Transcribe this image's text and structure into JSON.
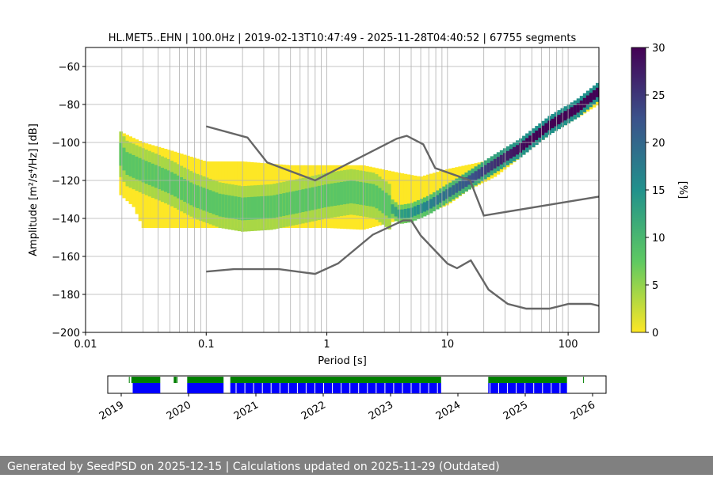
{
  "chart_data": [
    {
      "type": "heatmap",
      "title": "HL.MET5..EHN | 100.0Hz | 2019-02-13T10:47:49 - 2025-11-28T04:40:52 | 67755 segments",
      "xlabel": "Period [s]",
      "ylabel": "Amplitude [m²/s⁴/Hz] [dB]",
      "xscale": "log",
      "xlim": [
        0.01,
        180
      ],
      "ylim": [
        -200,
        -50
      ],
      "xticks": [
        "0.01",
        "0.1",
        "1",
        "10",
        "100"
      ],
      "yticks": [
        "−60",
        "−80",
        "−100",
        "−120",
        "−140",
        "−160",
        "−180",
        "−200"
      ],
      "grid": true,
      "colorbar": {
        "label": "[%]",
        "range": [
          0,
          30
        ],
        "ticks": [
          "0",
          "5",
          "10",
          "15",
          "20",
          "25",
          "30"
        ],
        "colormap": "viridis_r"
      },
      "psd_mode": [
        [
          0.019,
          -105
        ],
        [
          0.022,
          -111
        ],
        [
          0.03,
          -115
        ],
        [
          0.05,
          -121
        ],
        [
          0.08,
          -128
        ],
        [
          0.13,
          -133
        ],
        [
          0.2,
          -135
        ],
        [
          0.35,
          -134
        ],
        [
          0.6,
          -131
        ],
        [
          1.0,
          -128
        ],
        [
          1.6,
          -126
        ],
        [
          2.5,
          -128
        ],
        [
          3.5,
          -135
        ],
        [
          4.0,
          -138
        ],
        [
          5.0,
          -137
        ],
        [
          7.0,
          -133
        ],
        [
          10.0,
          -127
        ],
        [
          15.0,
          -120
        ],
        [
          25.0,
          -111
        ],
        [
          40.0,
          -103
        ],
        [
          70.0,
          -91
        ],
        [
          120.0,
          -82
        ],
        [
          180.0,
          -73
        ]
      ],
      "psd_envelope": {
        "upper": [
          [
            0.019,
            -94
          ],
          [
            0.03,
            -100
          ],
          [
            0.05,
            -104
          ],
          [
            0.1,
            -110
          ],
          [
            0.2,
            -110
          ],
          [
            0.5,
            -112
          ],
          [
            1.0,
            -112
          ],
          [
            2.0,
            -112
          ],
          [
            4.0,
            -116
          ],
          [
            6.0,
            -118
          ],
          [
            10.0,
            -114
          ],
          [
            20.0,
            -110
          ],
          [
            50.0,
            -100
          ],
          [
            100.0,
            -88
          ],
          [
            180.0,
            -77
          ]
        ],
        "lower": [
          [
            0.019,
            -127
          ],
          [
            0.025,
            -134
          ],
          [
            0.03,
            -145
          ],
          [
            0.1,
            -145
          ],
          [
            0.5,
            -145
          ],
          [
            1.0,
            -145
          ],
          [
            2.0,
            -146
          ],
          [
            3.0,
            -143
          ],
          [
            4.0,
            -141
          ],
          [
            5.0,
            -140
          ],
          [
            7.0,
            -137
          ],
          [
            10.0,
            -133
          ],
          [
            15.0,
            -125
          ],
          [
            25.0,
            -118
          ],
          [
            40.0,
            -108
          ],
          [
            70.0,
            -96
          ],
          [
            120.0,
            -87
          ],
          [
            180.0,
            -80
          ]
        ]
      },
      "noise_models": [
        {
          "name": "NHNM",
          "points": [
            [
              0.1,
              -91.5
            ],
            [
              0.22,
              -97.4
            ],
            [
              0.32,
              -110.5
            ],
            [
              0.8,
              -120.0
            ],
            [
              3.8,
              -98.0
            ],
            [
              4.6,
              -96.5
            ],
            [
              6.3,
              -101.0
            ],
            [
              7.9,
              -113.5
            ],
            [
              15.4,
              -120.0
            ],
            [
              20.0,
              -138.5
            ],
            [
              180.0,
              -128.5
            ]
          ]
        },
        {
          "name": "NLNM",
          "points": [
            [
              0.1,
              -168.0
            ],
            [
              0.17,
              -166.7
            ],
            [
              0.4,
              -166.7
            ],
            [
              0.8,
              -169.2
            ],
            [
              1.24,
              -163.7
            ],
            [
              2.4,
              -148.6
            ],
            [
              4.3,
              -141.1
            ],
            [
              5.0,
              -141.1
            ],
            [
              6.0,
              -149.0
            ],
            [
              10.0,
              -163.8
            ],
            [
              12.0,
              -166.2
            ],
            [
              15.6,
              -162.1
            ],
            [
              21.9,
              -177.5
            ],
            [
              31.6,
              -185.0
            ],
            [
              45.0,
              -187.5
            ],
            [
              70.0,
              -187.5
            ],
            [
              101.0,
              -185.0
            ],
            [
              154.0,
              -185.0
            ],
            [
              180.0,
              -186.0
            ]
          ]
        }
      ]
    },
    {
      "type": "timeline",
      "xticks": [
        "2019",
        "2020",
        "2021",
        "2022",
        "2023",
        "2024",
        "2025",
        "2026"
      ],
      "xlim": [
        2018.8,
        2026.2
      ],
      "series": [
        {
          "color": "#008000",
          "intervals": [
            [
              2019.15,
              2019.58
            ],
            [
              2019.78,
              2019.82
            ],
            [
              2019.98,
              2020.52
            ],
            [
              2020.62,
              2023.75
            ],
            [
              2024.45,
              2025.62
            ],
            [
              2025.86,
              2025.87
            ]
          ]
        },
        {
          "color": "#0000ff",
          "intervals": [
            [
              2019.17,
              2019.58
            ],
            [
              2019.98,
              2020.52
            ],
            [
              2020.62,
              2023.75
            ],
            [
              2024.45,
              2025.62
            ]
          ]
        }
      ],
      "markers": [
        2019.12,
        2019.83
      ]
    }
  ],
  "footer": "Generated by SeedPSD on 2025-12-15 | Calculations updated on 2025-11-29 (Outdated)"
}
